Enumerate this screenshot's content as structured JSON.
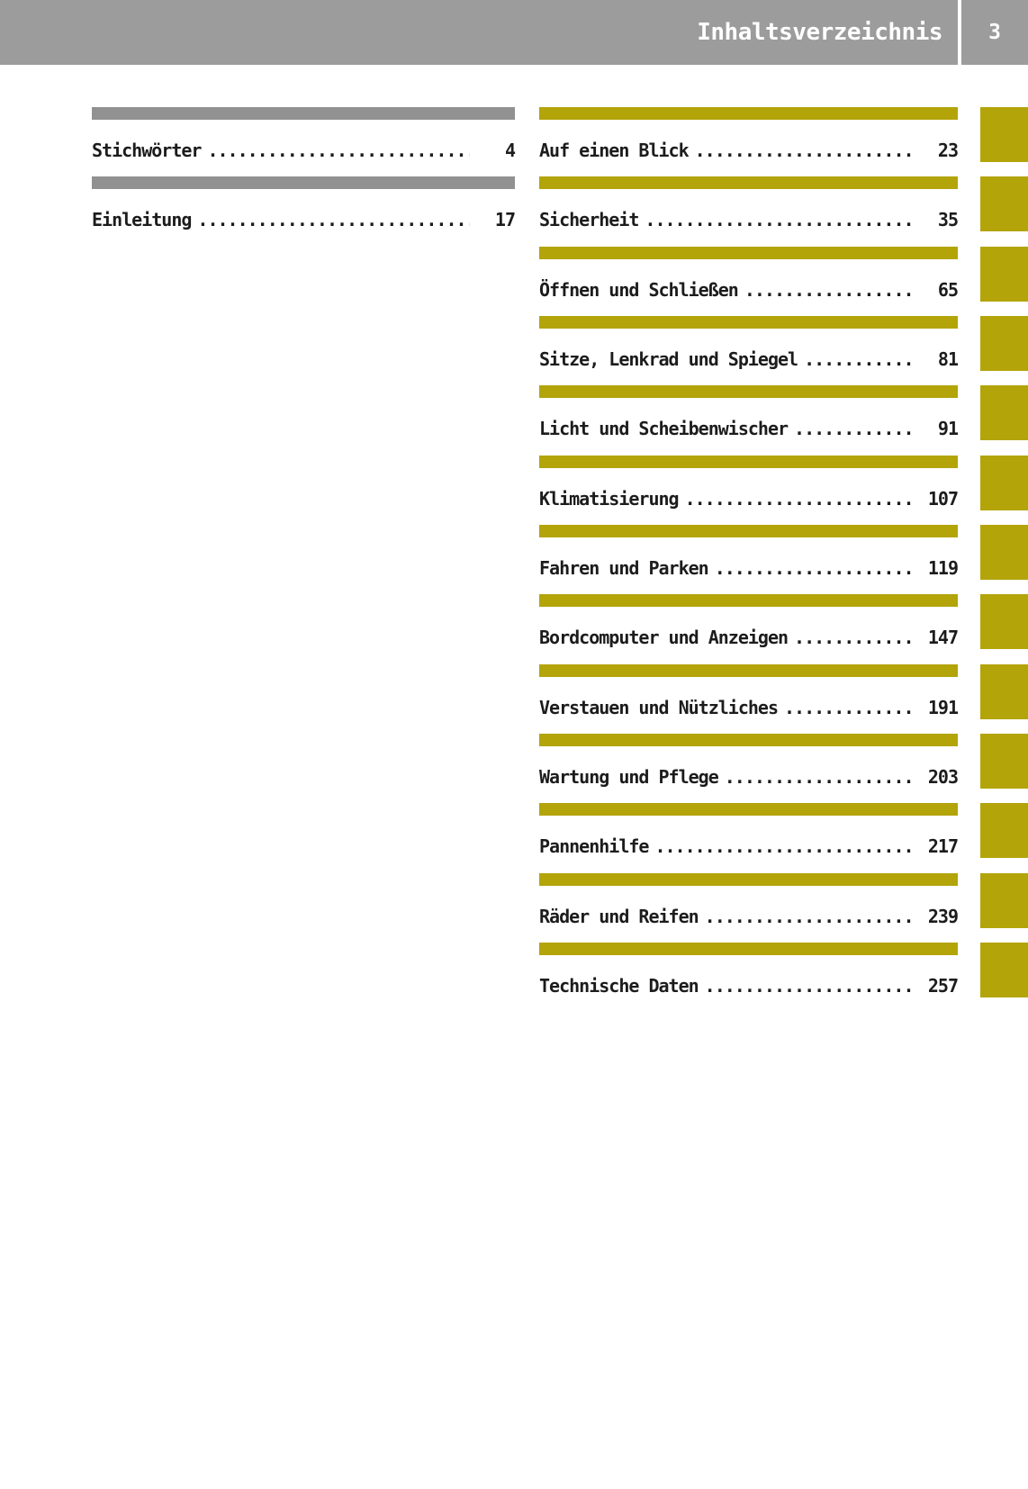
{
  "header": {
    "title": "Inhaltsverzeichnis",
    "page_number": "3"
  },
  "left_column": [
    {
      "label": "Stichwörter",
      "page": "4"
    },
    {
      "label": "Einleitung",
      "page": "17"
    }
  ],
  "right_column": [
    {
      "label": "Auf einen Blick",
      "page": "23"
    },
    {
      "label": "Sicherheit",
      "page": "35"
    },
    {
      "label": "Öffnen und Schließen",
      "page": "65"
    },
    {
      "label": "Sitze, Lenkrad und Spiegel",
      "page": "81"
    },
    {
      "label": "Licht und Scheibenwischer",
      "page": "91"
    },
    {
      "label": "Klimatisierung",
      "page": "107"
    },
    {
      "label": "Fahren und Parken",
      "page": "119"
    },
    {
      "label": "Bordcomputer und Anzeigen",
      "page": "147"
    },
    {
      "label": "Verstauen und Nützliches",
      "page": "191"
    },
    {
      "label": "Wartung und Pflege",
      "page": "203"
    },
    {
      "label": "Pannenhilfe",
      "page": "217"
    },
    {
      "label": "Räder und Reifen",
      "page": "239"
    },
    {
      "label": "Technische Daten",
      "page": "257"
    }
  ],
  "leader_dots": "........................................................................",
  "colors": {
    "accent_olive": "#b3a40a",
    "bar_gray": "#919191",
    "header_gray": "#9c9c9c"
  }
}
